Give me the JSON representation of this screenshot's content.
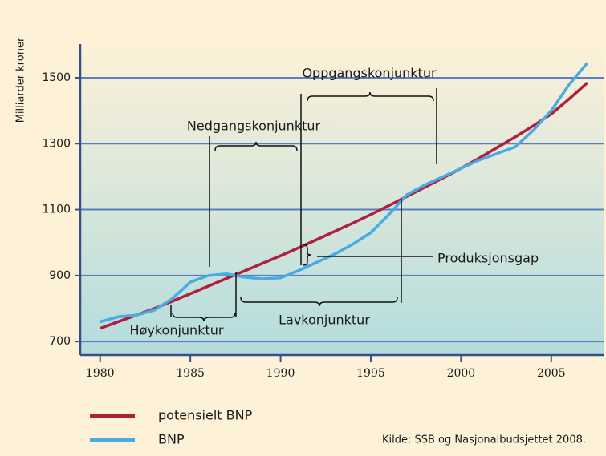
{
  "chart_data": {
    "type": "line",
    "y_label": "Milliarder kroner",
    "x": [
      1980,
      1981,
      1982,
      1983,
      1984,
      1985,
      1986,
      1987,
      1988,
      1989,
      1990,
      1991,
      1992,
      1993,
      1994,
      1995,
      1996,
      1997,
      1998,
      1999,
      2000,
      2001,
      2002,
      2003,
      2004,
      2005,
      2006,
      2007
    ],
    "series": [
      {
        "name": "potensielt BNP",
        "color": "#b01f3d",
        "values": [
          740,
          760,
          780,
          800,
          822,
          845,
          868,
          891,
          914,
          937,
          960,
          984,
          1009,
          1034,
          1059,
          1085,
          1112,
          1140,
          1168,
          1196,
          1225,
          1256,
          1288,
          1320,
          1354,
          1390,
          1436,
          1485
        ]
      },
      {
        "name": "BNP",
        "color": "#4aaae2",
        "values": [
          760,
          775,
          780,
          795,
          830,
          880,
          900,
          905,
          895,
          890,
          893,
          915,
          940,
          965,
          995,
          1030,
          1085,
          1145,
          1175,
          1200,
          1225,
          1250,
          1270,
          1290,
          1340,
          1400,
          1480,
          1545
        ]
      }
    ],
    "xlim": [
      1978.9,
      2007.9
    ],
    "xticks": [
      1980,
      1985,
      1990,
      1995,
      2000,
      2005
    ],
    "ylim": [
      659,
      1602
    ],
    "yticks": [
      700,
      900,
      1100,
      1300,
      1500
    ],
    "grid": true,
    "annotations": [
      "Oppgangskonjunktur",
      "Nedgangskonjunktur",
      "Produksjonsgap",
      "Høykonjunktur",
      "Lavkonjunktur"
    ],
    "source": "Kilde: SSB og Nasjonalbudsjettet 2008."
  }
}
